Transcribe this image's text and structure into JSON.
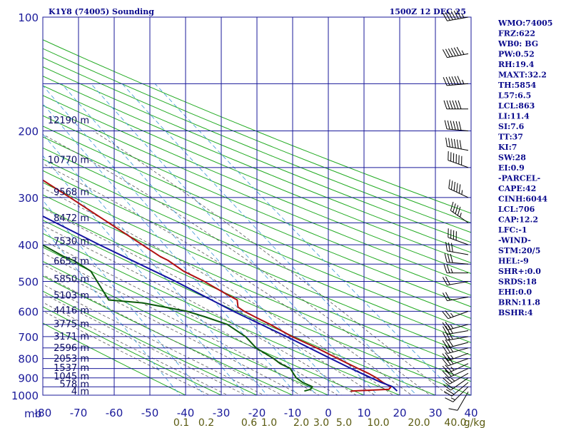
{
  "header": {
    "station": "K1Y8 (74005) Sounding",
    "time": "1500Z 12 DEC 25"
  },
  "colors": {
    "grid": "#1a1a9a",
    "dry_adiabat": "#22aa22",
    "moist_adiabat": "#555555",
    "mixing_ratio": "#4aa0d8",
    "temperature": "#b01010",
    "dewpoint": "#0c5a0c",
    "parcel": "#1212a0",
    "barbs": "#000000",
    "text": "#0a0a8c"
  },
  "chart_data": {
    "type": "line",
    "diagram": "skew-T log-P sounding",
    "title": "K1Y8 (74005) Sounding",
    "valid_time": "1500Z 12 DEC 25",
    "yscale": "log",
    "ylim": [
      1000,
      100
    ],
    "xlim": [
      -80,
      40
    ],
    "grid": true,
    "pressure_ticks": [
      "100",
      "200",
      "300",
      "400",
      "500",
      "600",
      "700",
      "800",
      "900",
      "1000"
    ],
    "pressure_unit_label": "mb",
    "temperature_ticks": [
      "-80",
      "-70",
      "-60",
      "-50",
      "-40",
      "-30",
      "-20",
      "-10",
      "0",
      "10",
      "20",
      "30",
      "40"
    ],
    "mixing_ratio_labels": [
      "0.1",
      "0.2",
      "0.6",
      "1.0",
      "2.0",
      "3.0",
      "5.0",
      "10.0",
      "20.0",
      "40.0",
      "g/kg"
    ],
    "height_labels": [
      {
        "p": 975,
        "label": "4 m"
      },
      {
        "p": 933,
        "label": "578 m"
      },
      {
        "p": 890,
        "label": "1045 m"
      },
      {
        "p": 845,
        "label": "1537 m"
      },
      {
        "p": 797,
        "label": "2053 m"
      },
      {
        "p": 748,
        "label": "2596 m"
      },
      {
        "p": 697,
        "label": "3171 m"
      },
      {
        "p": 646,
        "label": "3775 m"
      },
      {
        "p": 595,
        "label": "4416 m"
      },
      {
        "p": 543,
        "label": "5103 m"
      },
      {
        "p": 492,
        "label": "5850 m"
      },
      {
        "p": 441,
        "label": "6653 m"
      },
      {
        "p": 390,
        "label": "7530 m"
      },
      {
        "p": 339,
        "label": "8472 m"
      },
      {
        "p": 289,
        "label": "9568 m"
      },
      {
        "p": 238,
        "label": "10770 m"
      },
      {
        "p": 187,
        "label": "12190 m"
      }
    ],
    "series": [
      {
        "name": "temperature",
        "points": [
          {
            "p": 975,
            "t": 7
          },
          {
            "p": 965,
            "t": 18
          },
          {
            "p": 950,
            "t": 19
          },
          {
            "p": 925,
            "t": 17.5
          },
          {
            "p": 900,
            "t": 16.5
          },
          {
            "p": 875,
            "t": 15
          },
          {
            "p": 850,
            "t": 13
          },
          {
            "p": 825,
            "t": 11
          },
          {
            "p": 800,
            "t": 9
          },
          {
            "p": 750,
            "t": 5
          },
          {
            "p": 700,
            "t": 0
          },
          {
            "p": 650,
            "t": -4
          },
          {
            "p": 620,
            "t": -7
          },
          {
            "p": 600,
            "t": -9
          },
          {
            "p": 585,
            "t": -10
          },
          {
            "p": 560,
            "t": -9
          },
          {
            "p": 540,
            "t": -11
          },
          {
            "p": 500,
            "t": -15
          },
          {
            "p": 470,
            "t": -19
          },
          {
            "p": 440,
            "t": -21.5
          },
          {
            "p": 430,
            "t": -23
          },
          {
            "p": 400,
            "t": -26
          },
          {
            "p": 300,
            "t": -38
          },
          {
            "p": 250,
            "t": -46
          },
          {
            "p": 220,
            "t": -51
          },
          {
            "p": 200,
            "t": -55
          },
          {
            "p": 185,
            "t": -59
          },
          {
            "p": 170,
            "t": -62
          },
          {
            "p": 160,
            "t": -62
          }
        ]
      },
      {
        "name": "dewpoint",
        "points": [
          {
            "p": 975,
            "t": -6
          },
          {
            "p": 965,
            "t": -4
          },
          {
            "p": 950,
            "t": -3
          },
          {
            "p": 925,
            "t": -5
          },
          {
            "p": 900,
            "t": -6
          },
          {
            "p": 875,
            "t": -6
          },
          {
            "p": 850,
            "t": -6
          },
          {
            "p": 825,
            "t": -8
          },
          {
            "p": 800,
            "t": -9
          },
          {
            "p": 750,
            "t": -12
          },
          {
            "p": 700,
            "t": -13
          },
          {
            "p": 650,
            "t": -16
          },
          {
            "p": 620,
            "t": -21
          },
          {
            "p": 600,
            "t": -25
          },
          {
            "p": 570,
            "t": -36
          },
          {
            "p": 560,
            "t": -45
          },
          {
            "p": 500,
            "t": -45
          },
          {
            "p": 470,
            "t": -45
          },
          {
            "p": 440,
            "t": -48
          },
          {
            "p": 430,
            "t": -50
          },
          {
            "p": 400,
            "t": -54
          },
          {
            "p": 360,
            "t": -59
          },
          {
            "p": 310,
            "t": -64
          },
          {
            "p": 300,
            "t": -67
          },
          {
            "p": 250,
            "t": -69
          },
          {
            "p": 220,
            "t": -72
          },
          {
            "p": 200,
            "t": -76
          },
          {
            "p": 180,
            "t": -78
          },
          {
            "p": 165,
            "t": -80
          }
        ]
      },
      {
        "name": "parcel",
        "points": [
          {
            "p": 975,
            "t": 20
          },
          {
            "p": 950,
            "t": 19.5
          },
          {
            "p": 925,
            "t": 17
          },
          {
            "p": 900,
            "t": 15
          },
          {
            "p": 850,
            "t": 11
          },
          {
            "p": 800,
            "t": 7
          },
          {
            "p": 700,
            "t": -1.5
          },
          {
            "p": 600,
            "t": -12
          },
          {
            "p": 500,
            "t": -23
          },
          {
            "p": 400,
            "t": -38
          },
          {
            "p": 300,
            "t": -56
          },
          {
            "p": 250,
            "t": -68
          },
          {
            "p": 200,
            "t": -81
          }
        ]
      }
    ],
    "wind_barbs": [
      {
        "p": 980,
        "dir": 210,
        "spd": 10
      },
      {
        "p": 950,
        "dir": 225,
        "spd": 15
      },
      {
        "p": 925,
        "dir": 230,
        "spd": 20
      },
      {
        "p": 900,
        "dir": 235,
        "spd": 20
      },
      {
        "p": 875,
        "dir": 240,
        "spd": 25
      },
      {
        "p": 850,
        "dir": 245,
        "spd": 25
      },
      {
        "p": 825,
        "dir": 245,
        "spd": 25
      },
      {
        "p": 800,
        "dir": 250,
        "spd": 30
      },
      {
        "p": 775,
        "dir": 250,
        "spd": 25
      },
      {
        "p": 750,
        "dir": 255,
        "spd": 30
      },
      {
        "p": 725,
        "dir": 255,
        "spd": 30
      },
      {
        "p": 700,
        "dir": 260,
        "spd": 30
      },
      {
        "p": 675,
        "dir": 260,
        "spd": 30
      },
      {
        "p": 650,
        "dir": 255,
        "spd": 25
      },
      {
        "p": 600,
        "dir": 250,
        "spd": 25
      },
      {
        "p": 550,
        "dir": 260,
        "spd": 20
      },
      {
        "p": 500,
        "dir": 260,
        "spd": 20
      },
      {
        "p": 475,
        "dir": 270,
        "spd": 25
      },
      {
        "p": 450,
        "dir": 275,
        "spd": 30
      },
      {
        "p": 425,
        "dir": 280,
        "spd": 30
      },
      {
        "p": 400,
        "dir": 290,
        "spd": 40
      },
      {
        "p": 350,
        "dir": 305,
        "spd": 45
      },
      {
        "p": 300,
        "dir": 295,
        "spd": 55
      },
      {
        "p": 250,
        "dir": 290,
        "spd": 60
      },
      {
        "p": 225,
        "dir": 280,
        "spd": 60
      },
      {
        "p": 200,
        "dir": 275,
        "spd": 60
      },
      {
        "p": 175,
        "dir": 270,
        "spd": 60
      },
      {
        "p": 150,
        "dir": 265,
        "spd": 65
      },
      {
        "p": 125,
        "dir": 260,
        "spd": 65
      },
      {
        "p": 100,
        "dir": 260,
        "spd": 65
      }
    ]
  },
  "indices": [
    "WMO:74005",
    "FRZ:622",
    "WB0: BG",
    "PW:0.52",
    "RH:19.4",
    "MAXT:32.2",
    "TH:5854",
    "L57:6.5",
    "LCL:863",
    "LI:11.4",
    "SI:7.6",
    "TT:37",
    "KI:7",
    "SW:28",
    "EI:0.9",
    "-PARCEL-",
    "CAPE:42",
    "CINH:6044",
    "LCL:706",
    "CAP:12.2",
    "LFC:-1",
    "-WIND-",
    "STM:20/5",
    "HEL:-9",
    "SHR+:0.0",
    "SRDS:18",
    "EHI:0.0",
    "BRN:11.8",
    "BSHR:4"
  ]
}
